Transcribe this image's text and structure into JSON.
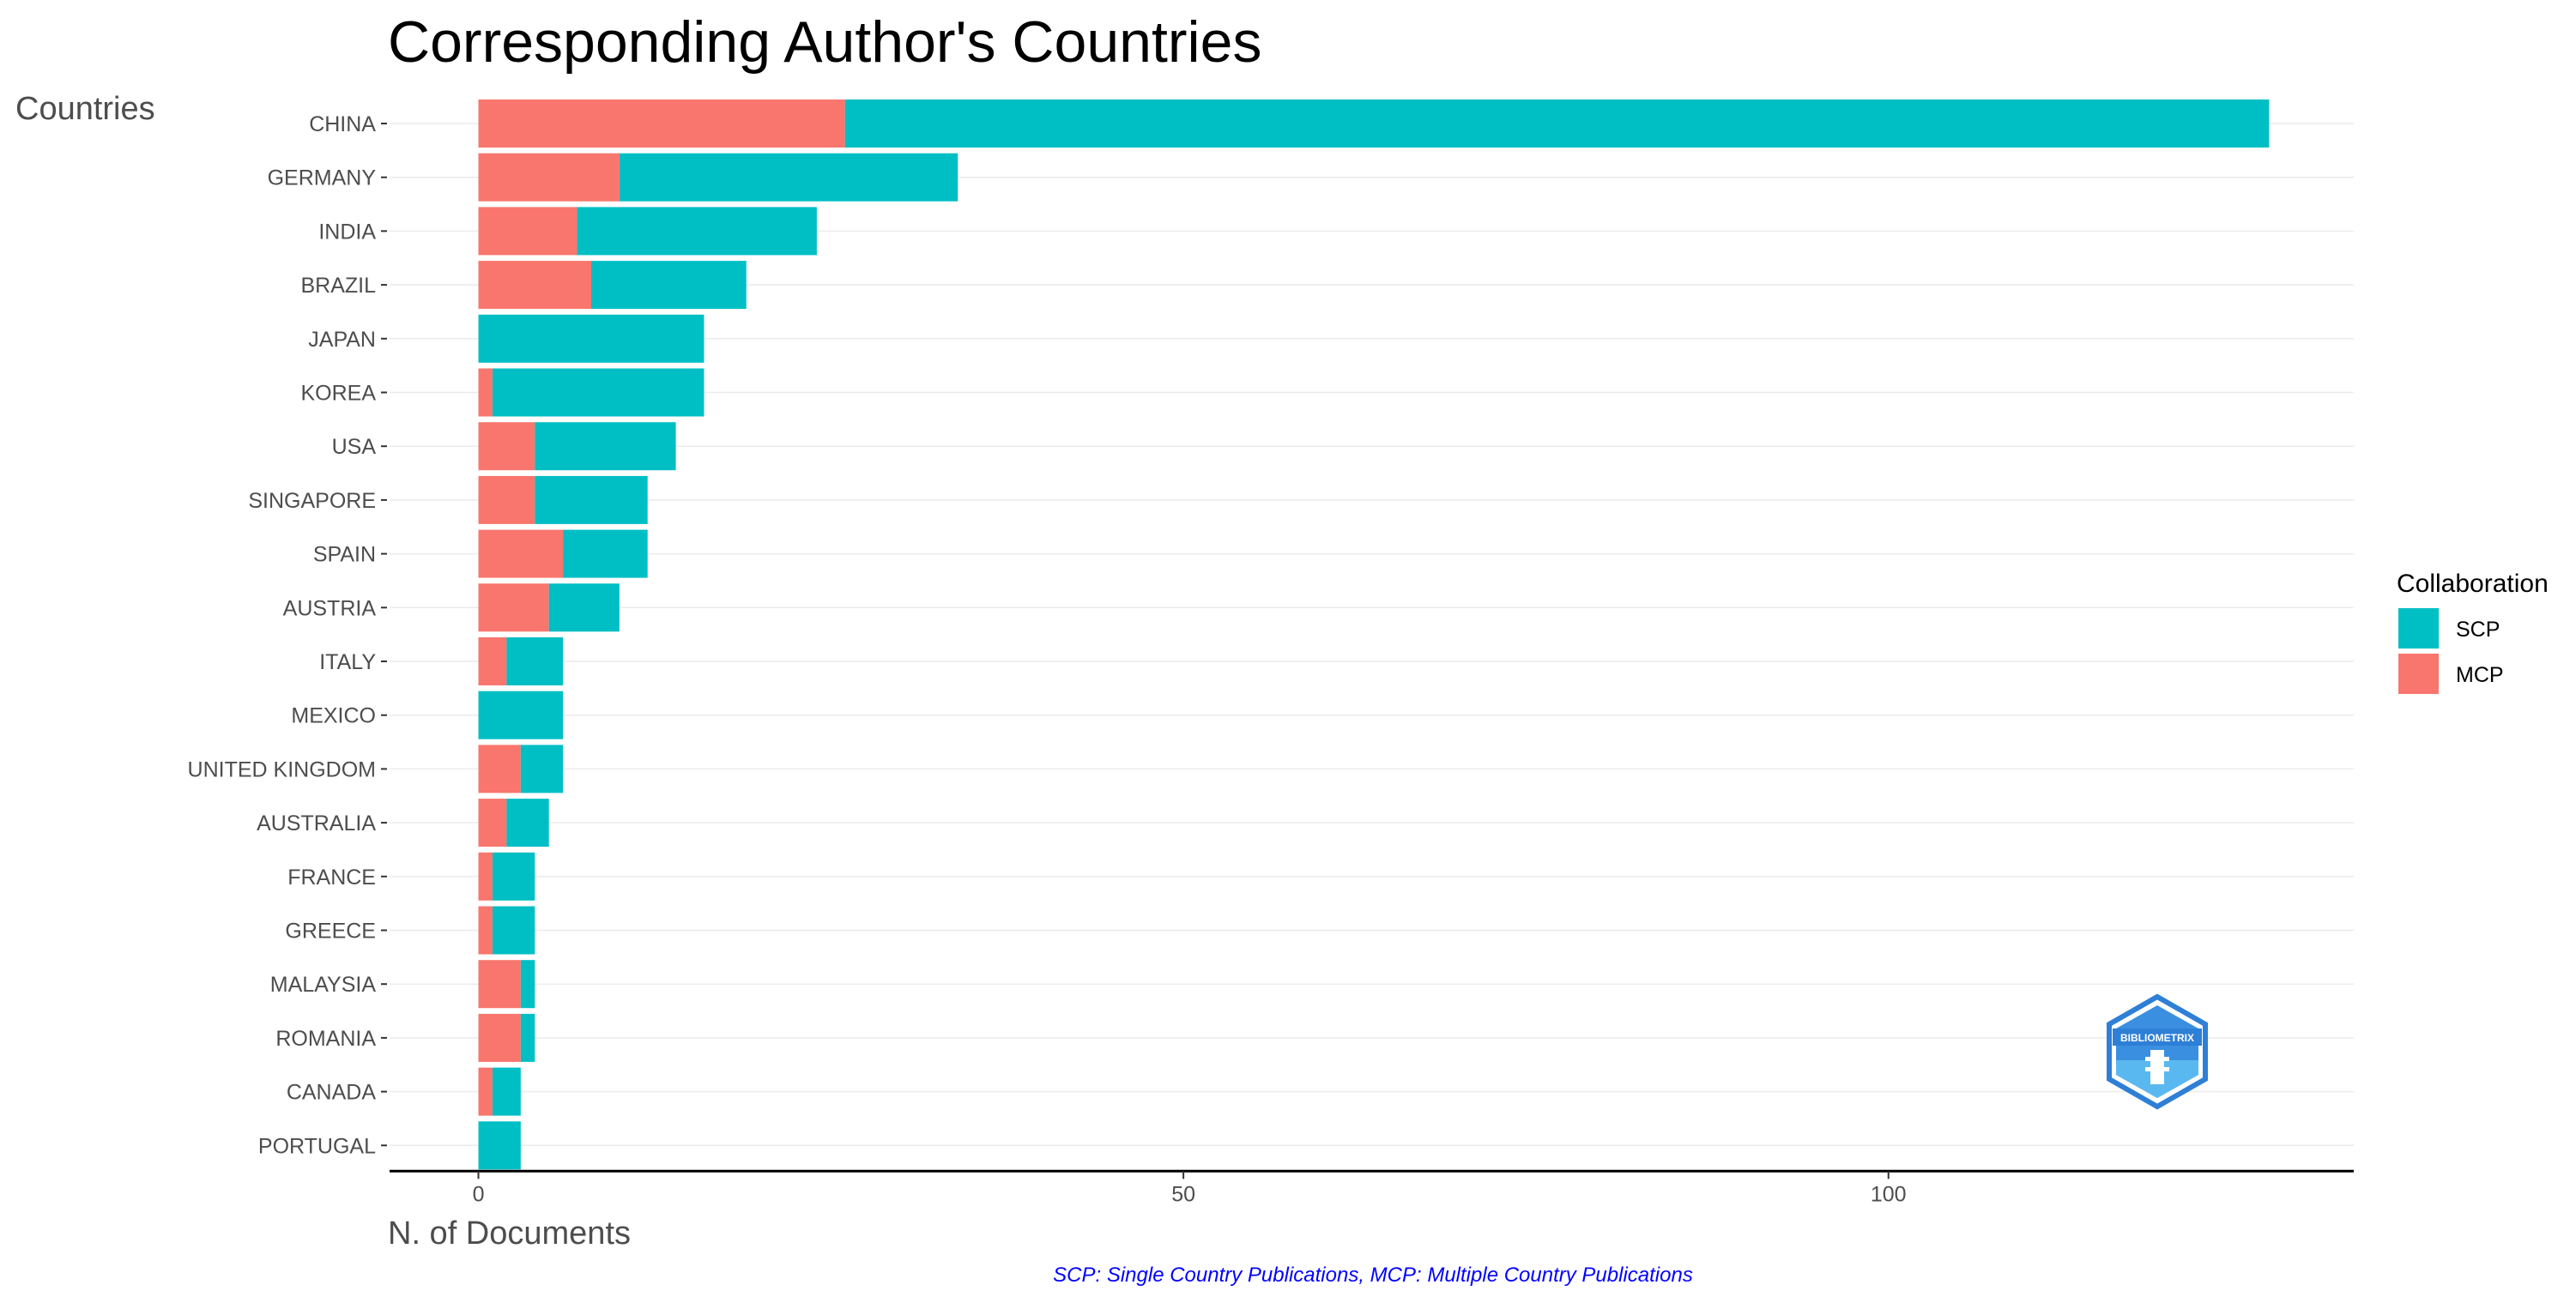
{
  "chart_data": {
    "type": "bar",
    "orientation": "horizontal",
    "stacked": true,
    "title": "Corresponding Author's Countries",
    "ylabel": "Countries",
    "xlabel": "N. of Documents",
    "caption": "SCP: Single Country Publications, MCP: Multiple Country Publications",
    "categories": [
      "CHINA",
      "GERMANY",
      "INDIA",
      "BRAZIL",
      "JAPAN",
      "KOREA",
      "USA",
      "SINGAPORE",
      "SPAIN",
      "AUSTRIA",
      "ITALY",
      "MEXICO",
      "UNITED KINGDOM",
      "AUSTRALIA",
      "FRANCE",
      "GREECE",
      "MALAYSIA",
      "ROMANIA",
      "CANADA",
      "PORTUGAL"
    ],
    "series": [
      {
        "name": "MCP",
        "color": "#f8766d",
        "values": [
          26,
          10,
          7,
          8,
          0,
          1,
          4,
          4,
          6,
          5,
          2,
          0,
          3,
          2,
          1,
          1,
          3,
          3,
          1,
          0
        ]
      },
      {
        "name": "SCP",
        "color": "#00bfc4",
        "values": [
          101,
          24,
          17,
          11,
          16,
          15,
          10,
          8,
          6,
          5,
          4,
          6,
          3,
          3,
          3,
          3,
          1,
          1,
          2,
          3
        ]
      }
    ],
    "xticks": [
      0,
      50,
      100
    ],
    "xlim": [
      -6.3,
      133
    ],
    "grid": "horizontal",
    "legend": {
      "title": "Collaboration",
      "position": "right",
      "entries": [
        {
          "label": "SCP",
          "color": "#00bfc4"
        },
        {
          "label": "MCP",
          "color": "#f8766d"
        }
      ]
    },
    "logo": {
      "text": "BIBLIOMETRIX",
      "color": "#2e7fd6"
    }
  }
}
